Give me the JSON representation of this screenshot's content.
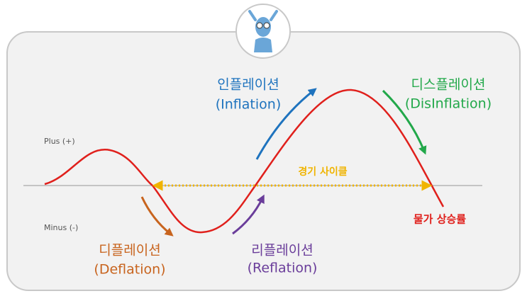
{
  "axis": {
    "plus": "Plus (+)",
    "minus": "Minus (-)"
  },
  "phases": [
    {
      "name": "인플레이션",
      "english": "(Inflation)"
    },
    {
      "name": "디스플레이션",
      "english": "(DisInflation)"
    },
    {
      "name": "디플레이션",
      "english": "(Deflation)"
    },
    {
      "name": "리플레이션",
      "english": "(Reflation)"
    }
  ],
  "cycle_label": "경기 사이클",
  "curve_label": "물가 상승률"
}
